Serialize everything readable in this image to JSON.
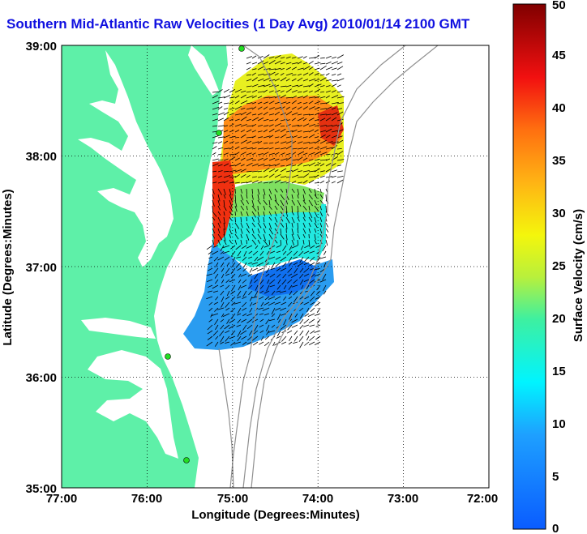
{
  "title": "Southern Mid-Atlantic Raw Velocities (1 Day Avg) 2010/01/14 2100 GMT",
  "x_axis": {
    "label": "Longitude (Degrees:Minutes)",
    "ticks": [
      "77:00",
      "76:00",
      "75:00",
      "74:00",
      "73:00",
      "72:00"
    ],
    "range": [
      -77,
      -72
    ]
  },
  "y_axis": {
    "label": "Latitude (Degrees:Minutes)",
    "ticks": [
      "35:00",
      "36:00",
      "37:00",
      "38:00",
      "39:00"
    ],
    "range": [
      35,
      39
    ]
  },
  "colorbar": {
    "label": "Surface Velocity (cm/s)",
    "ticks": [
      "0",
      "5",
      "10",
      "15",
      "20",
      "25",
      "30",
      "35",
      "40",
      "45",
      "50"
    ],
    "range": [
      0,
      50
    ]
  },
  "colors": {
    "land": "#5ef0a8",
    "title": "#1010e0",
    "station": "#22dd22",
    "bathymetry": "#909090"
  },
  "grid": "dotted"
}
